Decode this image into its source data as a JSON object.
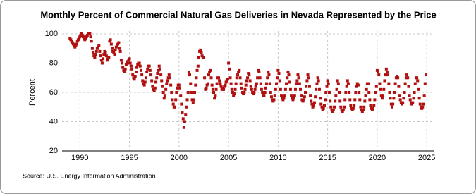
{
  "chart_data": {
    "type": "scatter",
    "title": "Monthly Percent of Commercial Natural Gas Deliveries in Nevada Represented by the Price",
    "y_label": "Percent",
    "source": "Source: U.S. Energy Information Administration",
    "xlim": [
      1988.2,
      2025.7
    ],
    "ylim": [
      20,
      100
    ],
    "xticks": [
      1990,
      1995,
      2000,
      2005,
      2010,
      2015,
      2020,
      2025
    ],
    "yticks": [
      20,
      40,
      60,
      80,
      100
    ],
    "grid": true,
    "series": [
      {
        "name": "Percent",
        "color": "#b01010",
        "x": [
          1989,
          1989.08,
          1989.17,
          1989.25,
          1989.33,
          1989.42,
          1989.5,
          1989.58,
          1989.67,
          1989.75,
          1989.83,
          1989.92,
          1990,
          1990.08,
          1990.17,
          1990.25,
          1990.33,
          1990.42,
          1990.5,
          1990.58,
          1990.67,
          1990.75,
          1990.83,
          1990.92,
          1991,
          1991.08,
          1991.17,
          1991.25,
          1991.33,
          1991.42,
          1991.5,
          1991.58,
          1991.67,
          1991.75,
          1991.83,
          1991.92,
          1992,
          1992.08,
          1992.17,
          1992.25,
          1992.33,
          1992.42,
          1992.5,
          1992.58,
          1992.67,
          1992.75,
          1992.83,
          1992.92,
          1993,
          1993.08,
          1993.17,
          1993.25,
          1993.33,
          1993.42,
          1993.5,
          1993.58,
          1993.67,
          1993.75,
          1993.83,
          1993.92,
          1994,
          1994.08,
          1994.17,
          1994.25,
          1994.33,
          1994.42,
          1994.5,
          1994.58,
          1994.67,
          1994.75,
          1994.83,
          1994.92,
          1995,
          1995.08,
          1995.17,
          1995.25,
          1995.33,
          1995.42,
          1995.5,
          1995.58,
          1995.67,
          1995.75,
          1995.83,
          1995.92,
          1996,
          1996.08,
          1996.17,
          1996.25,
          1996.33,
          1996.42,
          1996.5,
          1996.58,
          1996.67,
          1996.75,
          1996.83,
          1996.92,
          1997,
          1997.08,
          1997.17,
          1997.25,
          1997.33,
          1997.42,
          1997.5,
          1997.58,
          1997.67,
          1997.75,
          1997.83,
          1997.92,
          1998,
          1998.08,
          1998.17,
          1998.25,
          1998.33,
          1998.42,
          1998.5,
          1998.58,
          1998.67,
          1998.75,
          1998.83,
          1998.92,
          1999,
          1999.08,
          1999.17,
          1999.25,
          1999.33,
          1999.42,
          1999.5,
          1999.58,
          1999.67,
          1999.75,
          1999.83,
          1999.92,
          2000,
          2000.08,
          2000.17,
          2000.25,
          2000.33,
          2000.42,
          2000.5,
          2000.58,
          2000.67,
          2000.75,
          2000.83,
          2000.92,
          2001,
          2001.08,
          2001.17,
          2001.25,
          2001.33,
          2001.42,
          2001.5,
          2001.58,
          2001.67,
          2001.75,
          2001.83,
          2001.92,
          2002,
          2002.08,
          2002.17,
          2002.25,
          2002.33,
          2002.42,
          2002.5,
          2002.58,
          2002.67,
          2002.75,
          2002.83,
          2002.92,
          2003,
          2003.08,
          2003.17,
          2003.25,
          2003.33,
          2003.42,
          2003.5,
          2003.58,
          2003.67,
          2003.75,
          2003.83,
          2003.92,
          2004,
          2004.08,
          2004.17,
          2004.25,
          2004.33,
          2004.42,
          2004.5,
          2004.58,
          2004.67,
          2004.75,
          2004.83,
          2004.92,
          2005,
          2005.08,
          2005.17,
          2005.25,
          2005.33,
          2005.42,
          2005.5,
          2005.58,
          2005.67,
          2005.75,
          2005.83,
          2005.92,
          2006,
          2006.08,
          2006.17,
          2006.25,
          2006.33,
          2006.42,
          2006.5,
          2006.58,
          2006.67,
          2006.75,
          2006.83,
          2006.92,
          2007,
          2007.08,
          2007.17,
          2007.25,
          2007.33,
          2007.42,
          2007.5,
          2007.58,
          2007.67,
          2007.75,
          2007.83,
          2007.92,
          2008,
          2008.08,
          2008.17,
          2008.25,
          2008.33,
          2008.42,
          2008.5,
          2008.58,
          2008.67,
          2008.75,
          2008.83,
          2008.92,
          2009,
          2009.08,
          2009.17,
          2009.25,
          2009.33,
          2009.42,
          2009.5,
          2009.58,
          2009.67,
          2009.75,
          2009.83,
          2009.92,
          2010,
          2010.08,
          2010.17,
          2010.25,
          2010.33,
          2010.42,
          2010.5,
          2010.58,
          2010.67,
          2010.75,
          2010.83,
          2010.92,
          2011,
          2011.08,
          2011.17,
          2011.25,
          2011.33,
          2011.42,
          2011.5,
          2011.58,
          2011.67,
          2011.75,
          2011.83,
          2011.92,
          2012,
          2012.08,
          2012.17,
          2012.25,
          2012.33,
          2012.42,
          2012.5,
          2012.58,
          2012.67,
          2012.75,
          2012.83,
          2012.92,
          2013,
          2013.08,
          2013.17,
          2013.25,
          2013.33,
          2013.42,
          2013.5,
          2013.58,
          2013.67,
          2013.75,
          2013.83,
          2013.92,
          2014,
          2014.08,
          2014.17,
          2014.25,
          2014.33,
          2014.42,
          2014.5,
          2014.58,
          2014.67,
          2014.75,
          2014.83,
          2014.92,
          2015,
          2015.08,
          2015.17,
          2015.25,
          2015.33,
          2015.42,
          2015.5,
          2015.58,
          2015.67,
          2015.75,
          2015.83,
          2015.92,
          2016,
          2016.08,
          2016.17,
          2016.25,
          2016.33,
          2016.42,
          2016.5,
          2016.58,
          2016.67,
          2016.75,
          2016.83,
          2016.92,
          2017,
          2017.08,
          2017.17,
          2017.25,
          2017.33,
          2017.42,
          2017.5,
          2017.58,
          2017.67,
          2017.75,
          2017.83,
          2017.92,
          2018,
          2018.08,
          2018.17,
          2018.25,
          2018.33,
          2018.42,
          2018.5,
          2018.58,
          2018.67,
          2018.75,
          2018.83,
          2018.92,
          2019,
          2019.08,
          2019.17,
          2019.25,
          2019.33,
          2019.42,
          2019.5,
          2019.58,
          2019.67,
          2019.75,
          2019.83,
          2019.92,
          2020,
          2020.08,
          2020.17,
          2020.25,
          2020.33,
          2020.42,
          2020.5,
          2020.58,
          2020.67,
          2020.75,
          2020.83,
          2020.92,
          2021,
          2021.08,
          2021.17,
          2021.25,
          2021.33,
          2021.42,
          2021.5,
          2021.58,
          2021.67,
          2021.75,
          2021.83,
          2021.92,
          2022,
          2022.08,
          2022.17,
          2022.25,
          2022.33,
          2022.42,
          2022.5,
          2022.58,
          2022.67,
          2022.75,
          2022.83,
          2022.92,
          2023,
          2023.08,
          2023.17,
          2023.25,
          2023.33,
          2023.42,
          2023.5,
          2023.58,
          2023.67,
          2023.75,
          2023.83,
          2023.92,
          2024,
          2024.08,
          2024.17,
          2024.25,
          2024.33,
          2024.42,
          2024.5,
          2024.58,
          2024.67,
          2024.75,
          2024.83,
          2024.92
        ],
        "values": [
          97,
          96,
          95,
          94,
          93,
          92,
          91,
          92,
          93,
          95,
          96,
          97,
          98,
          99,
          100,
          99,
          98,
          97,
          96,
          97,
          98,
          99,
          100,
          100,
          100,
          98,
          95,
          90,
          87,
          85,
          84,
          86,
          88,
          90,
          91,
          92,
          88,
          85,
          82,
          80,
          83,
          86,
          88,
          87,
          85,
          82,
          83,
          84,
          95,
          96,
          93,
          90,
          88,
          87,
          86,
          89,
          91,
          92,
          93,
          94,
          90,
          88,
          82,
          80,
          77,
          75,
          74,
          76,
          79,
          81,
          80,
          82,
          83,
          80,
          78,
          76,
          72,
          70,
          69,
          71,
          74,
          77,
          79,
          80,
          80,
          78,
          75,
          72,
          68,
          66,
          65,
          67,
          70,
          74,
          76,
          78,
          78,
          75,
          72,
          68,
          64,
          62,
          61,
          63,
          67,
          70,
          73,
          75,
          78,
          76,
          72,
          68,
          64,
          60,
          56,
          58,
          62,
          66,
          68,
          70,
          72,
          70,
          65,
          60,
          55,
          52,
          50,
          50,
          55,
          60,
          63,
          65,
          65,
          63,
          58,
          52,
          46,
          42,
          36,
          40,
          45,
          50,
          55,
          60,
          74,
          72,
          66,
          60,
          55,
          53,
          55,
          60,
          65,
          70,
          75,
          78,
          84,
          88,
          89,
          87,
          85,
          84,
          84,
          70,
          62,
          63,
          65,
          66,
          72,
          74,
          75,
          70,
          65,
          62,
          60,
          56,
          58,
          62,
          66,
          70,
          70,
          68,
          66,
          64,
          62,
          63,
          62,
          64,
          65,
          67,
          68,
          69,
          80,
          76,
          70,
          66,
          62,
          60,
          58,
          59,
          62,
          66,
          70,
          72,
          74,
          75,
          70,
          66,
          63,
          60,
          59,
          60,
          62,
          65,
          68,
          70,
          73,
          72,
          68,
          64,
          62,
          60,
          59,
          60,
          62,
          64,
          66,
          70,
          75,
          74,
          70,
          66,
          62,
          60,
          58,
          58,
          60,
          63,
          66,
          70,
          74,
          72,
          66,
          60,
          57,
          55,
          54,
          55,
          58,
          62,
          66,
          70,
          75,
          73,
          68,
          62,
          58,
          56,
          55,
          56,
          58,
          62,
          66,
          70,
          74,
          72,
          67,
          62,
          58,
          56,
          55,
          56,
          58,
          62,
          66,
          68,
          72,
          70,
          66,
          62,
          58,
          55,
          54,
          55,
          57,
          60,
          64,
          68,
          72,
          70,
          64,
          58,
          54,
          52,
          50,
          51,
          53,
          57,
          62,
          66,
          70,
          68,
          62,
          56,
          52,
          50,
          48,
          49,
          51,
          55,
          60,
          64,
          68,
          66,
          60,
          54,
          50,
          48,
          47,
          48,
          50,
          54,
          58,
          62,
          68,
          66,
          60,
          54,
          50,
          48,
          47,
          48,
          50,
          55,
          60,
          64,
          68,
          66,
          60,
          55,
          51,
          49,
          48,
          49,
          51,
          55,
          60,
          64,
          66,
          65,
          60,
          55,
          50,
          48,
          47,
          48,
          50,
          54,
          58,
          62,
          66,
          66,
          60,
          55,
          51,
          49,
          48,
          49,
          51,
          55,
          60,
          64,
          75,
          74,
          72,
          66,
          62,
          58,
          56,
          58,
          62,
          68,
          72,
          76,
          74,
          72,
          66,
          60,
          56,
          52,
          50,
          52,
          56,
          60,
          66,
          70,
          71,
          70,
          64,
          58,
          55,
          53,
          52,
          53,
          56,
          60,
          66,
          70,
          72,
          70,
          64,
          58,
          55,
          53,
          52,
          53,
          56,
          60,
          66,
          70,
          70,
          68,
          62,
          56,
          52,
          50,
          49,
          50,
          52,
          58,
          66,
          72
        ]
      }
    ]
  }
}
